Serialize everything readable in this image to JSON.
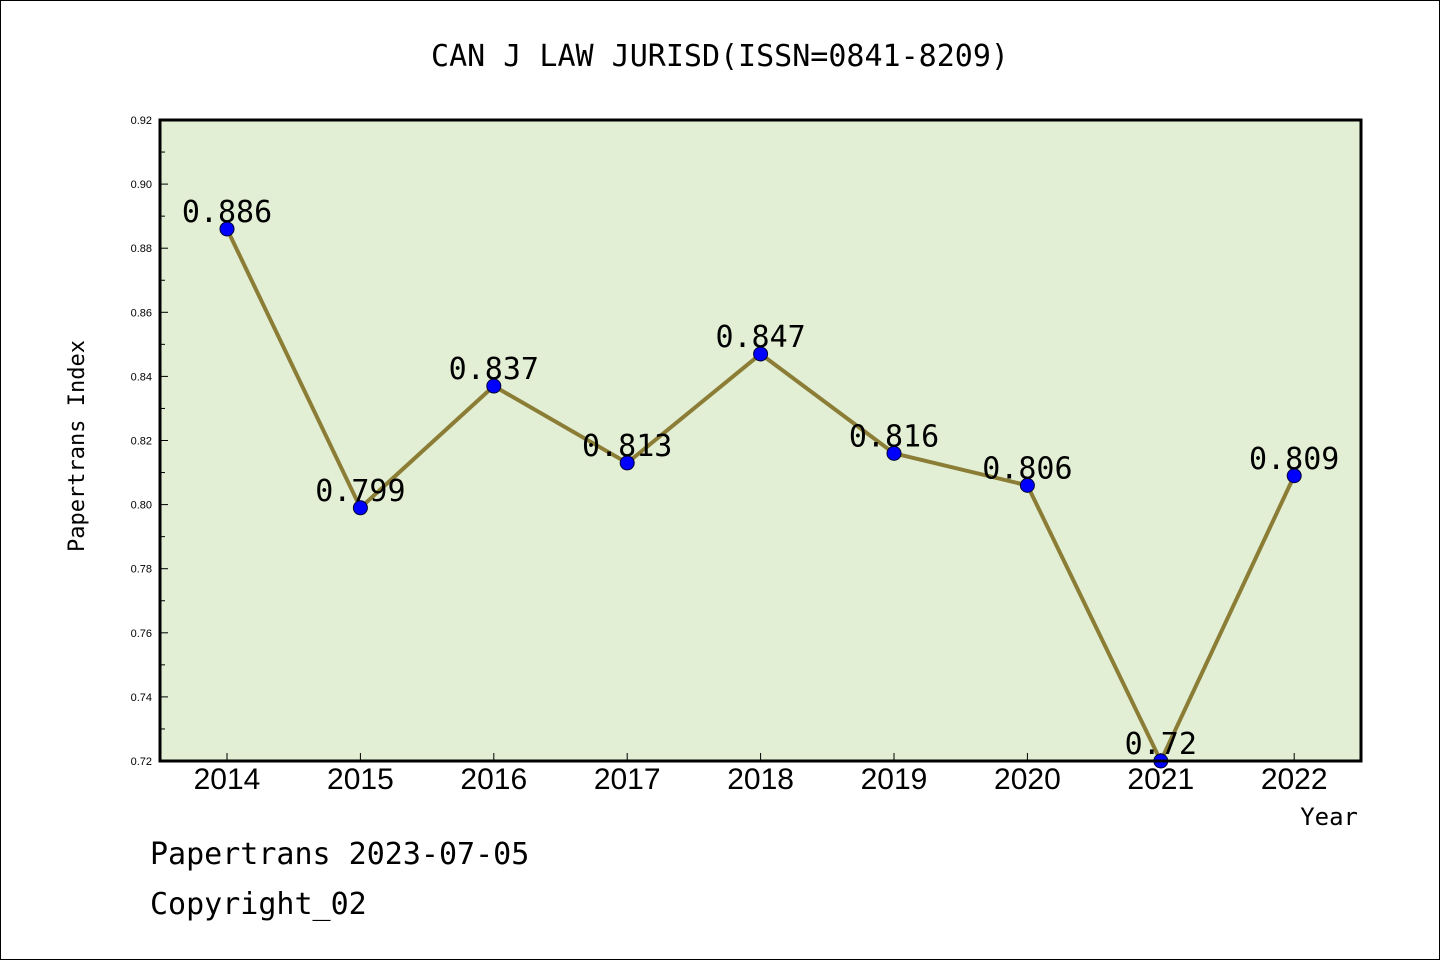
{
  "chart_data": {
    "type": "line",
    "title": "CAN J LAW JURISD(ISSN=0841-8209)",
    "xlabel": "Year",
    "ylabel": "Papertrans Index",
    "categories": [
      "2014",
      "2015",
      "2016",
      "2017",
      "2018",
      "2019",
      "2020",
      "2021",
      "2022"
    ],
    "values": [
      0.886,
      0.799,
      0.837,
      0.813,
      0.847,
      0.816,
      0.806,
      0.72,
      0.809
    ],
    "value_labels": [
      "0.886",
      "0.799",
      "0.837",
      "0.813",
      "0.847",
      "0.816",
      "0.806",
      "0.72",
      "0.809"
    ],
    "ylim": [
      0.72,
      0.92
    ],
    "yticks": [
      0.72,
      0.74,
      0.76,
      0.78,
      0.8,
      0.82,
      0.84,
      0.86,
      0.88,
      0.9,
      0.92
    ],
    "ytick_labels": [
      "0.72",
      "0.74",
      "0.76",
      "0.78",
      "0.80",
      "0.82",
      "0.84",
      "0.86",
      "0.88",
      "0.90",
      "0.92"
    ],
    "grid": false,
    "legend": "none",
    "colors": {
      "plot_background": "#e2efd5",
      "line": "#8b7d35",
      "marker": "#0000ff"
    }
  },
  "footer": {
    "line1": "Papertrans 2023-07-05",
    "line2": "Copyright_02"
  }
}
